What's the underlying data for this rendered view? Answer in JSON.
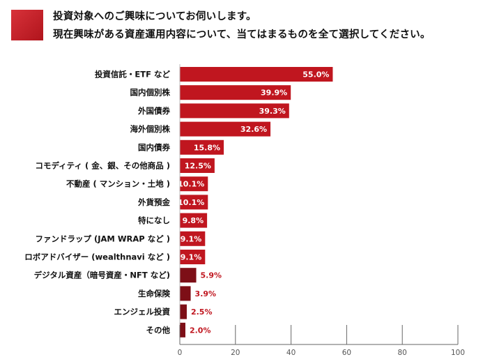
{
  "title": {
    "line1": "投資対象へのご興味についてお伺いします。",
    "line2": "現在興味がある資産運用内容について、当てはまるものを全て選択してください。"
  },
  "colors": {
    "accent": "#c0161f",
    "accent_light": "#cc2028",
    "dark_bar": "#7d0f17",
    "value_red": "#c0161f"
  },
  "chart_data": {
    "type": "bar",
    "orientation": "horizontal",
    "title": "現在興味がある資産運用内容",
    "xlabel": "",
    "ylabel": "",
    "xlim": [
      0,
      100
    ],
    "xticks": [
      0,
      20,
      40,
      60,
      80,
      100
    ],
    "grid": false,
    "categories": [
      "投資信託・ETF など",
      "国内個別株",
      "外国債券",
      "海外個別株",
      "国内債券",
      "コモディティ ( 金、銀、その他商品 )",
      "不動産 ( マンション・土地 )",
      "外貨預金",
      "特になし",
      "ファンドラップ (JAM WRAP など )",
      "ロボアドバイザー (wealthnavi など )",
      "デジタル資産（暗号資産・NFT など)",
      "生命保険",
      "エンジェル投資",
      "その他"
    ],
    "values": [
      55.0,
      39.9,
      39.3,
      32.6,
      15.8,
      12.5,
      10.1,
      10.1,
      9.8,
      9.1,
      9.1,
      5.9,
      3.9,
      2.5,
      2.0
    ],
    "labels": [
      "55.0%",
      "39.9%",
      "39.3%",
      "32.6%",
      "15.8%",
      "12.5%",
      "10.1%",
      "10.1%",
      "9.8%",
      "9.1%",
      "9.1%",
      "5.9%",
      "3.9%",
      "2.5%",
      "2.0%"
    ]
  }
}
